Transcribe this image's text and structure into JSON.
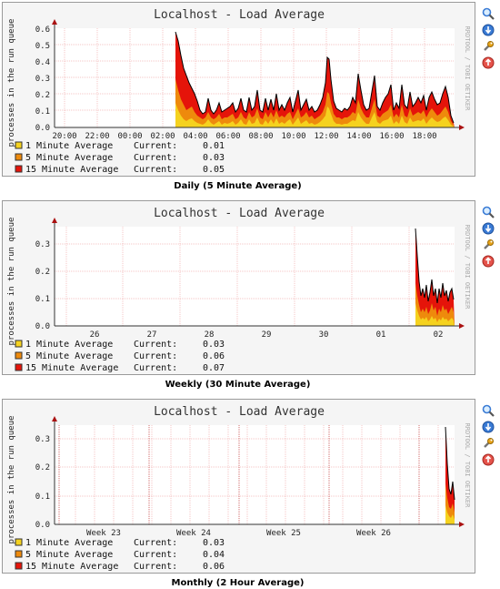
{
  "charts": [
    {
      "caption": "Daily (5 Minute Average)",
      "title": "Localhost - Load Average",
      "ylabel": "processes in the run queue",
      "side_label": "RRDTOOL / TOBI OETIKER",
      "ytick_labels": [
        "0.0",
        "0.1",
        "0.2",
        "0.3",
        "0.4",
        "0.5",
        "0.6"
      ],
      "xtick_labels": [
        "20:00",
        "22:00",
        "00:00",
        "02:00",
        "04:00",
        "06:00",
        "08:00",
        "10:00",
        "12:00",
        "14:00",
        "16:00",
        "18:00"
      ],
      "legend": [
        {
          "label": "1 Minute Average",
          "current_label": "Current:",
          "current": "0.01",
          "color": "#f5d21f"
        },
        {
          "label": "5 Minute Average",
          "current_label": "Current:",
          "current": "0.03",
          "color": "#ee8a0c"
        },
        {
          "label": "15 Minute Average",
          "current_label": "Current:",
          "current": "0.05",
          "color": "#e5140a"
        }
      ]
    },
    {
      "caption": "Weekly (30 Minute Average)",
      "title": "Localhost - Load Average",
      "ylabel": "processes in the run queue",
      "side_label": "RRDTOOL / TOBI OETIKER",
      "ytick_labels": [
        "0.0",
        "0.1",
        "0.2",
        "0.3"
      ],
      "xtick_labels": [
        "26",
        "27",
        "28",
        "29",
        "30",
        "01",
        "02"
      ],
      "legend": [
        {
          "label": "1 Minute Average",
          "current_label": "Current:",
          "current": "0.03",
          "color": "#f5d21f"
        },
        {
          "label": "5 Minute Average",
          "current_label": "Current:",
          "current": "0.06",
          "color": "#ee8a0c"
        },
        {
          "label": "15 Minute Average",
          "current_label": "Current:",
          "current": "0.07",
          "color": "#e5140a"
        }
      ]
    },
    {
      "caption": "Monthly (2 Hour Average)",
      "title": "Localhost - Load Average",
      "ylabel": "processes in the run queue",
      "side_label": "RRDTOOL / TOBI OETIKER",
      "ytick_labels": [
        "0.0",
        "0.1",
        "0.2",
        "0.3"
      ],
      "xtick_labels": [
        "Week 23",
        "Week 24",
        "Week 25",
        "Week 26"
      ],
      "legend": [
        {
          "label": "1 Minute Average",
          "current_label": "Current:",
          "current": "0.03",
          "color": "#f5d21f"
        },
        {
          "label": "5 Minute Average",
          "current_label": "Current:",
          "current": "0.04",
          "color": "#ee8a0c"
        },
        {
          "label": "15 Minute Average",
          "current_label": "Current:",
          "current": "0.06",
          "color": "#e5140a"
        }
      ]
    }
  ],
  "icons": [
    "zoom-icon",
    "download-icon",
    "settings-icon",
    "remove-icon"
  ]
}
